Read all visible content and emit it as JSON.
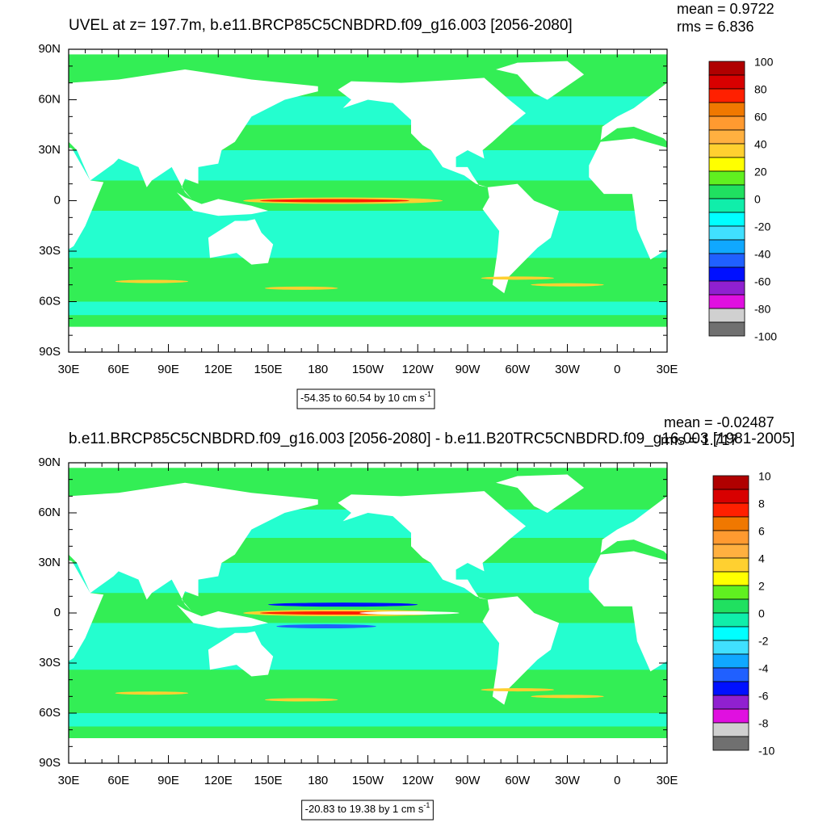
{
  "panels": [
    {
      "title": "UVEL at z= 197.7m, b.e11.BRCP85C5CNBDRD.f09_g16.003 [2056-2080]",
      "mean": "mean = 0.9722",
      "rms": "rms = 6.836",
      "lat_labels": [
        "90N",
        "60N",
        "30N",
        "0",
        "30S",
        "60S",
        "90S"
      ],
      "lon_labels": [
        "30E",
        "60E",
        "90E",
        "120E",
        "150E",
        "180",
        "150W",
        "120W",
        "90W",
        "60W",
        "30W",
        "0",
        "30E"
      ],
      "info": "-54.35 to 60.54 by 10 cm s",
      "info_exp": "-1",
      "colorbar": {
        "labels": [
          100,
          80,
          60,
          40,
          20,
          0,
          -20,
          -40,
          -60,
          -80,
          -100
        ],
        "colors": [
          "#b00000",
          "#d80000",
          "#ff2000",
          "#f07800",
          "#ff9a30",
          "#ffb040",
          "#ffd030",
          "#ffff00",
          "#60f020",
          "#20e060",
          "#10eeaa",
          "#00ffff",
          "#40e0ff",
          "#10a8ff",
          "#2060ff",
          "#0010ff",
          "#9020d0",
          "#e010e0",
          "#d0d0d0",
          "#707070"
        ]
      }
    },
    {
      "title": "b.e11.BRCP85C5CNBDRD.f09_g16.003 [2056-2080] - b.e11.B20TRC5CNBDRD.f09_g16.003 [1981-2005]",
      "mean": "mean = -0.02487",
      "rms": "rms = 1.717",
      "lat_labels": [
        "90N",
        "60N",
        "30N",
        "0",
        "30S",
        "60S",
        "90S"
      ],
      "lon_labels": [
        "30E",
        "60E",
        "90E",
        "120E",
        "150E",
        "180",
        "150W",
        "120W",
        "90W",
        "60W",
        "30W",
        "0",
        "30E"
      ],
      "info": "-20.83 to 19.38 by 1 cm s",
      "info_exp": "-1",
      "colorbar": {
        "labels": [
          10,
          8,
          6,
          4,
          2,
          0,
          -2,
          -4,
          -6,
          -8,
          -10
        ],
        "colors": [
          "#b00000",
          "#d80000",
          "#ff2000",
          "#f07800",
          "#ff9a30",
          "#ffb040",
          "#ffd030",
          "#ffff00",
          "#60f020",
          "#20e060",
          "#10eeaa",
          "#00ffff",
          "#40e0ff",
          "#10a8ff",
          "#2060ff",
          "#0010ff",
          "#9020d0",
          "#e010e0",
          "#d0d0d0",
          "#707070"
        ]
      }
    }
  ]
}
